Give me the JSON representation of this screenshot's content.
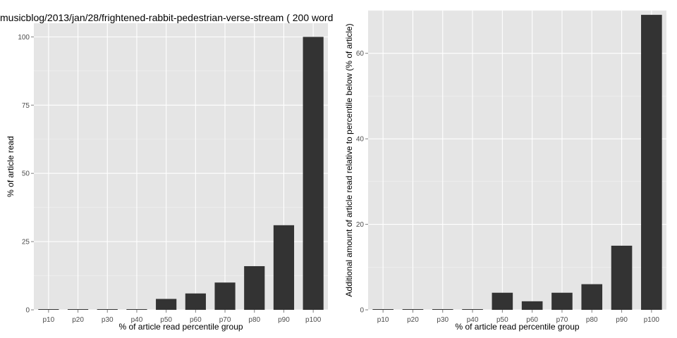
{
  "chart_data": [
    {
      "type": "bar",
      "title": "musicblog/2013/jan/28/frightened-rabbit-pedestrian-verse-stream ( 200 word",
      "xlabel": "% of article read percentile group",
      "ylabel": "% of article read",
      "categories": [
        "p10",
        "p20",
        "p30",
        "p40",
        "p50",
        "p60",
        "p70",
        "p80",
        "p90",
        "p100"
      ],
      "values": [
        0,
        0,
        0,
        0,
        4,
        6,
        10,
        16,
        31,
        100
      ],
      "ylim": [
        0,
        105
      ],
      "yticks": [
        0,
        25,
        50,
        75,
        100
      ],
      "grid": true,
      "bar_color": "#333333",
      "panel_color": "#e5e5e5"
    },
    {
      "type": "bar",
      "title": "",
      "xlabel": "% of article read percentile group",
      "ylabel": "Additional amount of article read relative to percentile below (% of article)",
      "categories": [
        "p10",
        "p20",
        "p30",
        "p40",
        "p50",
        "p60",
        "p70",
        "p80",
        "p90",
        "p100"
      ],
      "values": [
        0,
        0,
        0,
        0,
        4,
        2,
        4,
        6,
        15,
        69
      ],
      "ylim": [
        0,
        70
      ],
      "yticks": [
        0,
        20,
        40,
        60
      ],
      "grid": true,
      "bar_color": "#333333",
      "panel_color": "#e5e5e5"
    }
  ]
}
